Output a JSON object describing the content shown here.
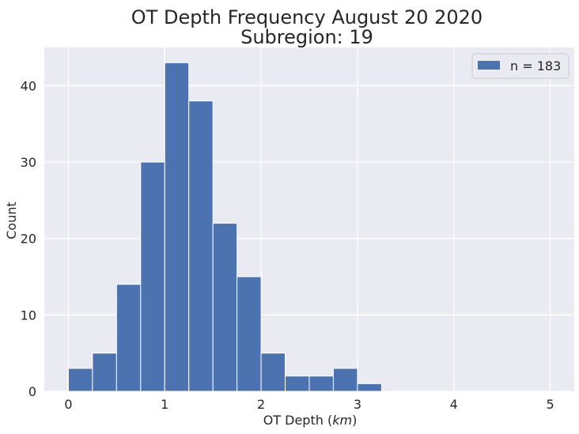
{
  "chart_data": {
    "type": "bar",
    "title_line1": "OT Depth Frequency August 20 2020",
    "title_line2": "Subregion: 19",
    "xlabel_prefix": "OT Depth (",
    "xlabel_unit": "km",
    "xlabel_suffix": ")",
    "ylabel": "Count",
    "bin_width": 0.25,
    "bin_starts": [
      0,
      0.25,
      0.5,
      0.75,
      1.0,
      1.25,
      1.5,
      1.75,
      2.0,
      2.25,
      2.5,
      2.75,
      3.0,
      3.25,
      3.5,
      3.75,
      4.0,
      4.25,
      4.5,
      4.75
    ],
    "counts": [
      3,
      5,
      14,
      30,
      43,
      38,
      22,
      15,
      5,
      2,
      2,
      3,
      1,
      0,
      0,
      0,
      0,
      0,
      0,
      0
    ],
    "xlim": [
      -0.25,
      5.25
    ],
    "ylim": [
      0,
      45
    ],
    "xticks": [
      0,
      1,
      2,
      3,
      4,
      5
    ],
    "xtick_labels": [
      "0",
      "1",
      "2",
      "3",
      "4",
      "5"
    ],
    "yticks": [
      0,
      10,
      20,
      30,
      40
    ],
    "ytick_labels": [
      "0",
      "10",
      "20",
      "30",
      "40"
    ],
    "grid": true,
    "legend": {
      "placement": "top-right",
      "label": "n = 183"
    },
    "colors": {
      "bar": "#4c72b0",
      "plot_bg": "#eaeaf2",
      "grid": "#ffffff",
      "text": "#262626"
    }
  }
}
